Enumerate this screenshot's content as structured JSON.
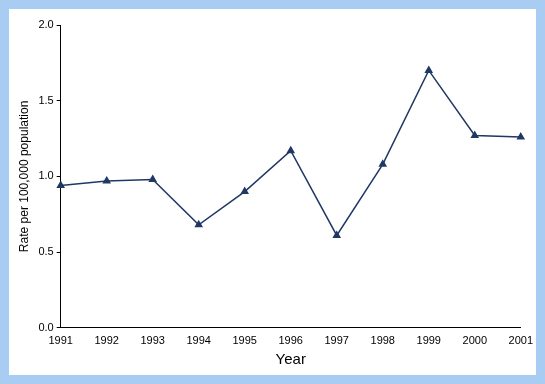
{
  "chart_data": {
    "type": "line",
    "x_label": "Year",
    "y_label": "Rate per 100,000 population",
    "categories": [
      "1991",
      "1992",
      "1993",
      "1994",
      "1995",
      "1996",
      "1997",
      "1998",
      "1999",
      "2000",
      "2001"
    ],
    "values": [
      0.94,
      0.97,
      0.98,
      0.68,
      0.9,
      1.17,
      0.61,
      1.08,
      1.7,
      1.27,
      1.26
    ],
    "color": "#1f3864",
    "marker": "triangle",
    "line_style": "solid",
    "ylim": [
      0,
      2
    ],
    "yticks": [
      {
        "value": 0,
        "label": "0.0"
      },
      0.5,
      {
        "value": 1,
        "label": "1.0"
      },
      1.5,
      {
        "value": 2,
        "label": "2.0"
      }
    ],
    "grid": false
  }
}
